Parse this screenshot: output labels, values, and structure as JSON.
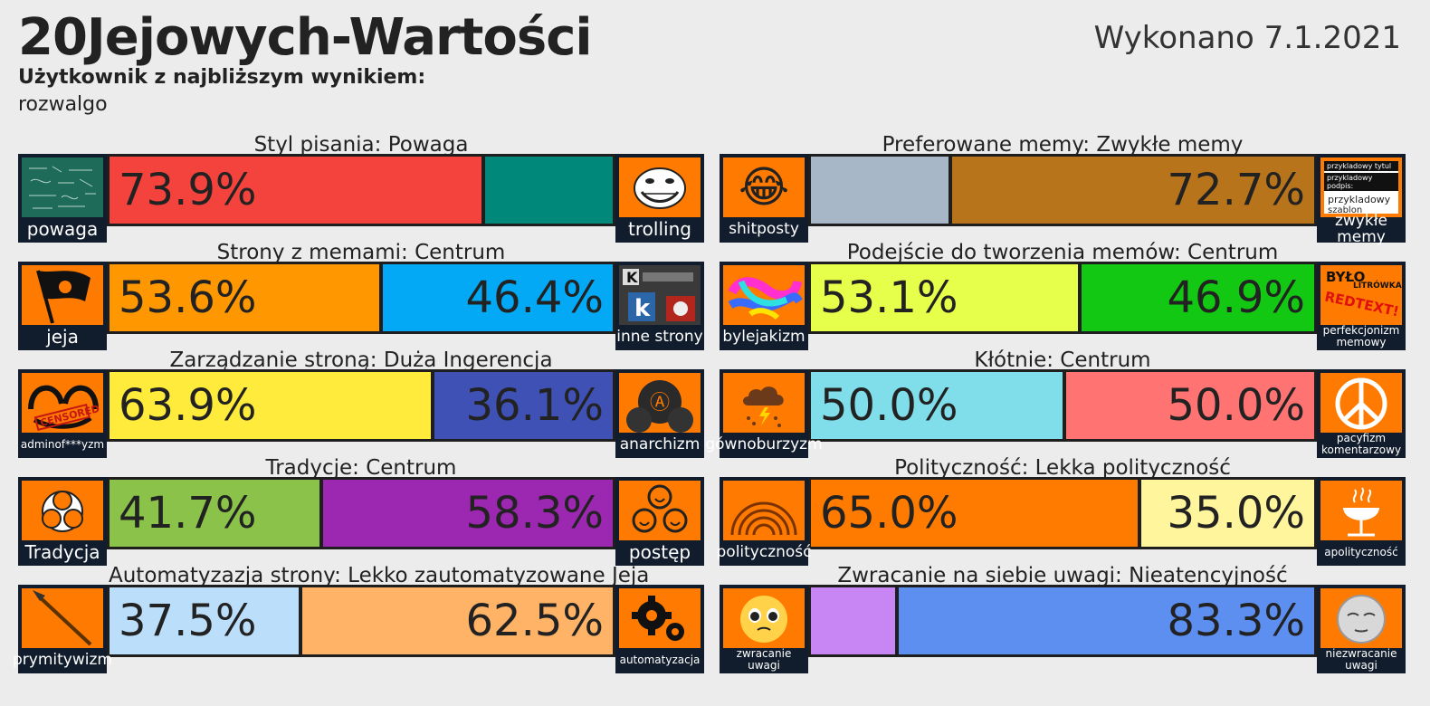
{
  "header": {
    "title": "20Jejowych-Wartości",
    "date": "Wykonano 7.1.2021",
    "user_label": "Użytkownik z najbliższym wynikiem:",
    "user_name": "rozwalgo"
  },
  "rows": [
    {
      "title": "Styl pisania: Powaga",
      "left_pct": 73.9,
      "right_pct": 26.1,
      "left_text": "73.9%",
      "right_text": "",
      "left_color": "#f4433c",
      "right_color": "#00897b",
      "left_icon": "chalkboard-icon",
      "left_cap": "powaga",
      "right_icon": "trollface-icon",
      "right_cap": "trolling"
    },
    {
      "title": "Preferowane memy: Zwykłe memy",
      "left_pct": 27.3,
      "right_pct": 72.7,
      "left_text": "",
      "right_text": "72.7%",
      "left_color": "#a8b7c7",
      "right_color": "#b8741a",
      "left_icon": "laughing-emoji-icon",
      "left_cap": "shitposty",
      "right_icon": "meme-template-icon",
      "right_cap": "zwykłe memy"
    },
    {
      "title": "Strony z memami: Centrum",
      "left_pct": 53.6,
      "right_pct": 46.4,
      "left_text": "53.6%",
      "right_text": "46.4%",
      "left_color": "#ff9800",
      "right_color": "#03a9f4",
      "left_icon": "jeja-flag-icon",
      "left_cap": "jeja",
      "right_icon": "other-sites-icon",
      "right_cap": "inne strony"
    },
    {
      "title": "Podejście do tworzenia memów: Centrum",
      "left_pct": 53.1,
      "right_pct": 46.9,
      "left_text": "53.1%",
      "right_text": "46.9%",
      "left_color": "#e6ff4a",
      "right_color": "#12c812",
      "left_icon": "scribble-icon",
      "left_cap": "bylejakizm",
      "right_icon": "redtext-icon",
      "right_cap": "perfekcjonizm memowy"
    },
    {
      "title": "Zarządzanie stroną: Duża Ingerencja",
      "left_pct": 63.9,
      "right_pct": 36.1,
      "left_text": "63.9%",
      "right_text": "36.1%",
      "left_color": "#ffeb3b",
      "right_color": "#3f51b5",
      "left_icon": "censored-icon",
      "left_cap": "adminof***yzm",
      "right_icon": "anarchy-icon",
      "right_cap": "anarchizm"
    },
    {
      "title": "Kłótnie: Centrum",
      "left_pct": 50.0,
      "right_pct": 50.0,
      "left_text": "50.0%",
      "right_text": "50.0%",
      "left_color": "#80deea",
      "right_color": "#ff7373",
      "left_icon": "poop-storm-icon",
      "left_cap": "gównoburzyzm",
      "right_icon": "peace-icon",
      "right_cap": "pacyfizm komentarzowy"
    },
    {
      "title": "Tradycje: Centrum",
      "left_pct": 41.7,
      "right_pct": 58.3,
      "left_text": "41.7%",
      "right_text": "58.3%",
      "left_color": "#8bc34a",
      "right_color": "#9c27b0",
      "left_icon": "tradition-icon",
      "left_cap": "Tradycja",
      "right_icon": "progress-faces-icon",
      "right_cap": "postęp"
    },
    {
      "title": "Polityczność: Lekka polityczność",
      "left_pct": 65.0,
      "right_pct": 35.0,
      "left_text": "65.0%",
      "right_text": "35.0%",
      "left_color": "#ff7b00",
      "right_color": "#fff59d",
      "left_icon": "parliament-icon",
      "left_cap": "polityczność",
      "right_icon": "grill-icon",
      "right_cap": "apolityczność"
    },
    {
      "title": "Automatyzazja strony: Lekko zautomatyzowane Jeja",
      "left_pct": 37.5,
      "right_pct": 62.5,
      "left_text": "37.5%",
      "right_text": "62.5%",
      "left_color": "#bbdefb",
      "right_color": "#ffb366",
      "left_icon": "spear-icon",
      "left_cap": "prymitywizm",
      "right_icon": "gears-icon",
      "right_cap": "automatyzacja"
    },
    {
      "title": "Zwracanie na siebie uwagi: Nieatencyjność",
      "left_pct": 16.7,
      "right_pct": 83.3,
      "left_text": "",
      "right_text": "83.3%",
      "left_color": "#c886f5",
      "right_color": "#5c8ff0",
      "left_icon": "pleading-face-icon",
      "left_cap": "zwracanie uwagi",
      "right_icon": "tired-face-icon",
      "right_cap": "niezwracanie uwagi"
    }
  ],
  "icon_glyphs": {
    "laughing": "😂",
    "peace": "☮",
    "gears": "⚙",
    "grill": "♨",
    "flag": "⚑",
    "spear": "╱",
    "poop": "☁"
  },
  "meme_template": {
    "line1": "przykladowy tytul",
    "line2": "przykladowy podpis:",
    "line3": "przykladowy",
    "line4": "szablon"
  },
  "redtext": {
    "line1": "BYŁO",
    "line2": "LITRÓWKA",
    "line3": "REDTEXT!"
  },
  "censored_text": "CENSORED"
}
